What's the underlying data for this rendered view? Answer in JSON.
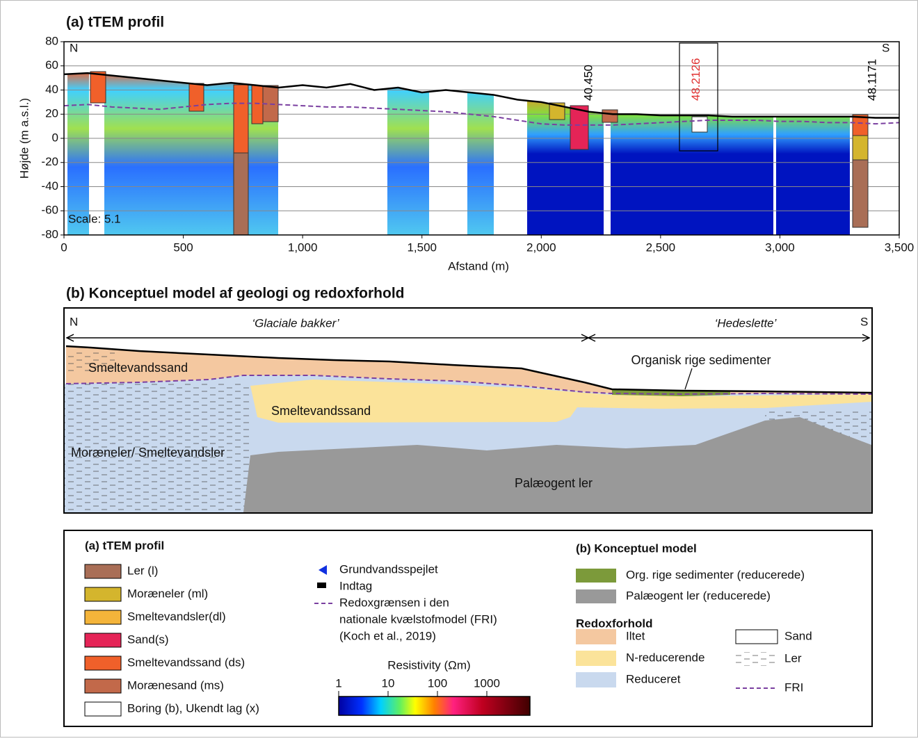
{
  "chart_data": {
    "type": "line",
    "title": "(a) tTEM profil",
    "xlabel": "Afstand (m)",
    "ylabel": "Højde (m a.s.l.)",
    "xlim": [
      0,
      3500
    ],
    "ylim": [
      -80,
      80
    ],
    "xticks": [
      0,
      500,
      {
        "value": 1000,
        "label": "1,000"
      },
      {
        "value": 1500,
        "label": "1,500"
      },
      {
        "value": 2000,
        "label": "2,000"
      },
      {
        "value": 2500,
        "label": "2,500"
      },
      {
        "value": 3000,
        "label": "3,000"
      },
      {
        "value": 3500,
        "label": "3,500"
      }
    ],
    "yticks": [
      -80,
      -60,
      -40,
      -20,
      0,
      20,
      40,
      60,
      80
    ],
    "grid": true,
    "x": [
      0,
      100,
      200,
      300,
      400,
      500,
      600,
      700,
      800,
      900,
      1000,
      1100,
      1200,
      1300,
      1400,
      1500,
      1600,
      1700,
      1800,
      1900,
      2000,
      2100,
      2200,
      2300,
      2400,
      2500,
      2600,
      2700,
      2800,
      2900,
      3000,
      3100,
      3200,
      3300,
      3400,
      3500
    ],
    "series": [
      {
        "color": "#000000",
        "dash": false,
        "values": [
          53,
          54,
          52,
          50,
          48,
          46,
          44,
          46,
          44,
          42,
          44,
          42,
          45,
          40,
          42,
          38,
          40,
          38,
          36,
          32,
          30,
          26,
          22,
          20,
          20,
          19,
          19,
          19,
          18,
          18,
          18,
          18,
          18,
          18,
          17,
          17
        ]
      },
      {
        "color": "#7a3fa0",
        "dash": true,
        "values": [
          27,
          28,
          26,
          25,
          24,
          26,
          28,
          29,
          29,
          28,
          27,
          26,
          26,
          25,
          24,
          23,
          22,
          20,
          18,
          15,
          12,
          11,
          11,
          11,
          12,
          13,
          14,
          15,
          15,
          15,
          14,
          14,
          13,
          13,
          12,
          13
        ]
      }
    ],
    "annotations": [
      "N",
      "S",
      "Scale: 5.1"
    ],
    "borehole_labels": [
      {
        "text": "40.450",
        "x": 2200,
        "color": "#000000"
      },
      {
        "text": "48.2126",
        "x": 2650,
        "color": "#e03030"
      },
      {
        "text": "48.1171",
        "x": 3390,
        "color": "#000000"
      }
    ]
  },
  "diagram": {
    "title": "(b) Konceptuel model af geologi og redoxforhold",
    "north": "N",
    "south": "S",
    "left_region": "‘Glaciale bakker’",
    "right_region": "‘Hedeslette’",
    "labels": [
      "Smeltevandssand",
      "Smeltevandssand",
      "Organisk rige sedimenter",
      "Moræneler/ Smeltevandsler",
      "Palæogent ler"
    ]
  },
  "legend": {
    "panel_a": {
      "title": "(a) tTEM profil",
      "items": [
        {
          "label": "Ler (l)",
          "color": "#a96e56"
        },
        {
          "label": "Moræneler (ml)",
          "color": "#d4b52d"
        },
        {
          "label": "Smeltevandsler(dl)",
          "color": "#f4b43a"
        },
        {
          "label": "Sand(s)",
          "color": "#e52457"
        },
        {
          "label": "Smeltevandssand (ds)",
          "color": "#f0602a"
        },
        {
          "label": "Morænesand (ms)",
          "color": "#c2694a"
        },
        {
          "label": "Boring (b), Ukendt lag (x)",
          "color": "#ffffff"
        }
      ],
      "symbols": [
        "Grundvandsspejlet",
        "Indtag"
      ],
      "fri_text": [
        "Redoxgrænsen i den",
        "nationale kvælstofmodel (FRI)",
        "(Koch et al., 2019)"
      ]
    },
    "colorbar": {
      "title": "Resistivity (Ωm)",
      "ticks": [
        1,
        10,
        100,
        1000
      ]
    },
    "panel_b": {
      "title": "(b) Konceptuel model",
      "items": [
        {
          "label": "Org. rige sedimenter (reducerede)",
          "color": "#7c9a3a"
        },
        {
          "label": "Palæogent ler (reducerede)",
          "color": "#999999"
        }
      ],
      "redox_title": "Redoxforhold",
      "redox_items": [
        {
          "label": "Iltet",
          "color": "#f4c8a0"
        },
        {
          "label": "N-reducerende",
          "color": "#fbe39a"
        },
        {
          "label": "Reduceret",
          "color": "#c9d9ee"
        }
      ],
      "patterns": [
        "Sand",
        "Ler",
        "FRI"
      ]
    }
  }
}
